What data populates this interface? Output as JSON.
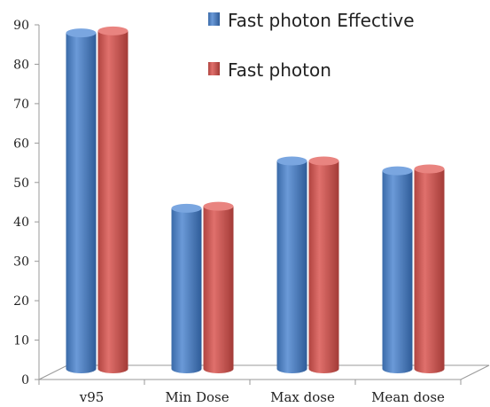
{
  "chart_data": {
    "type": "bar",
    "categories": [
      "v95",
      "Min Dose",
      "Max dose",
      "Mean dose"
    ],
    "series": [
      {
        "name": "Fast photon Effective",
        "color": "#4f81bd",
        "values": [
          87.5,
          43,
          55,
          52.5
        ]
      },
      {
        "name": "Fast photon",
        "color": "#c0504d",
        "values": [
          88,
          43.5,
          55,
          53
        ]
      }
    ],
    "ylim": [
      0,
      90
    ],
    "yticks": [
      "0",
      "10",
      "20",
      "30",
      "40",
      "50",
      "60",
      "70",
      "80",
      "90"
    ],
    "title": "",
    "xlabel": "",
    "ylabel": "",
    "legend_position": "top-right",
    "grid": false,
    "style": "3d-cylinder"
  }
}
